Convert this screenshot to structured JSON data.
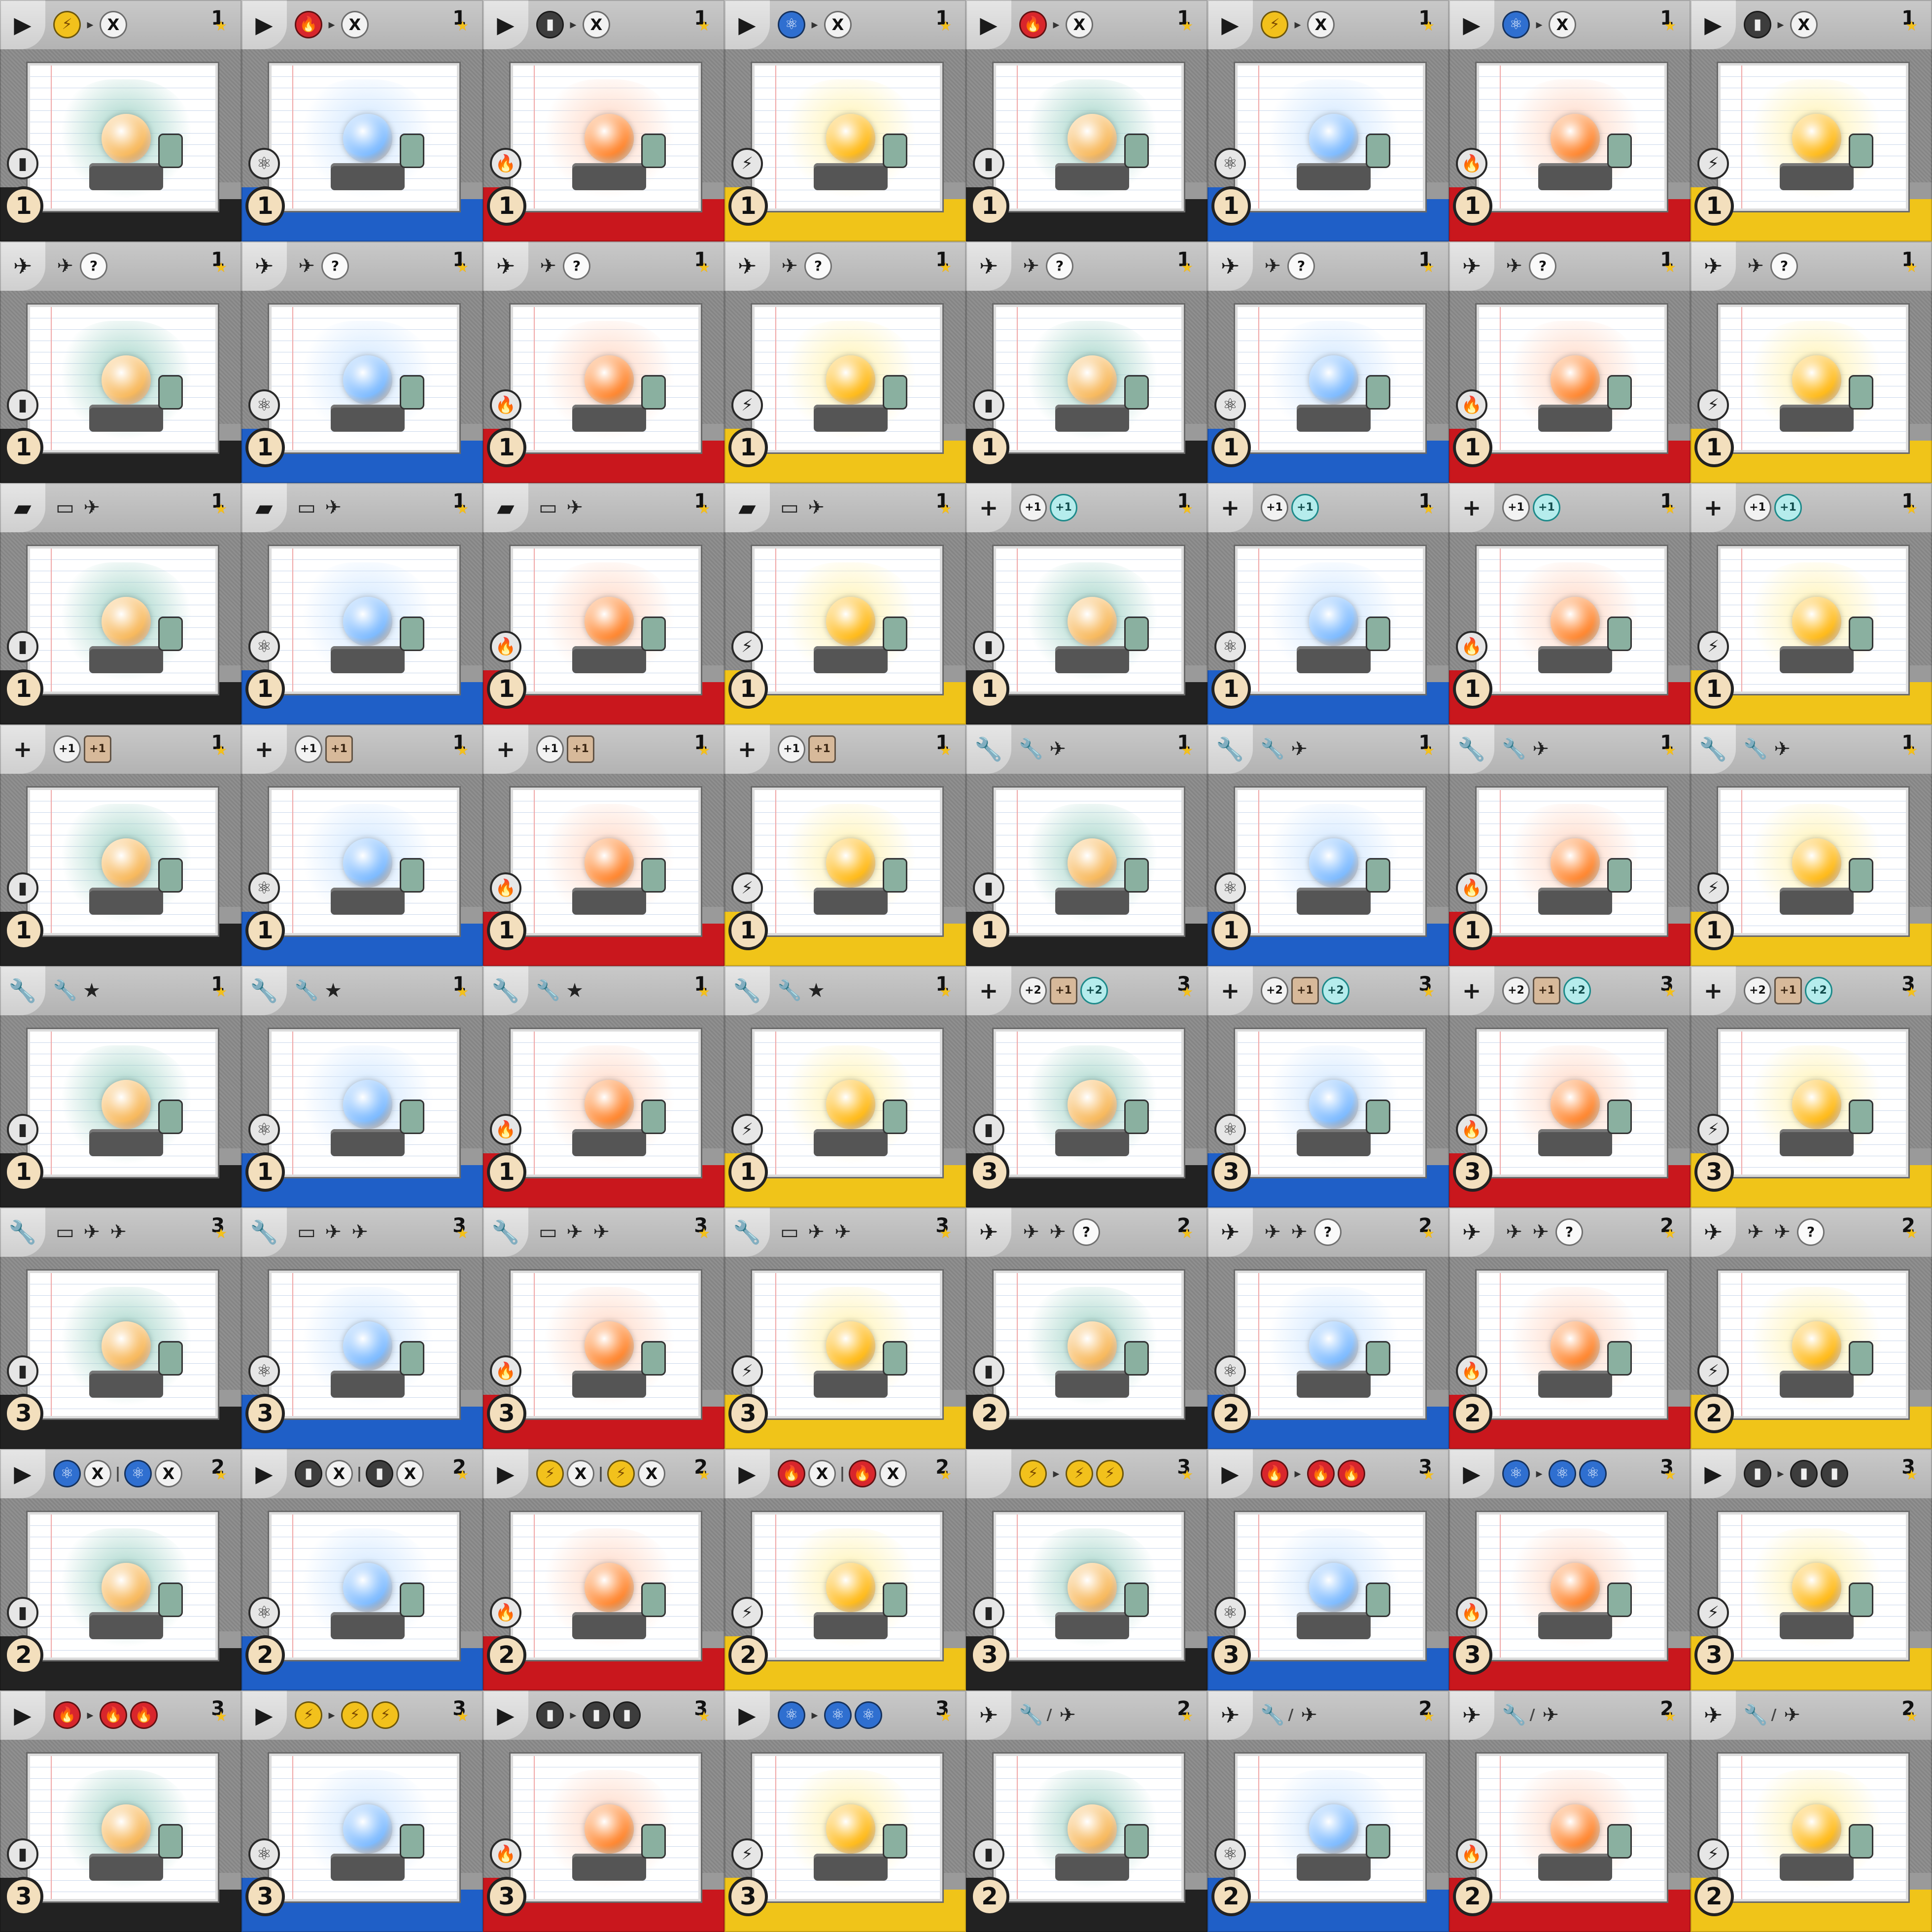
{
  "colors": {
    "black": "#222222",
    "blue": "#1f5fc7",
    "red": "#c9171d",
    "yellow": "#f0c419",
    "lightning": "#f2c11c",
    "fire": "#d8262c",
    "battery": "#3d3d3d",
    "atom": "#2f6fd0"
  },
  "resource_icons": {
    "lightning": "⚡",
    "fire": "🔥",
    "battery": "▮",
    "atom": "⚛"
  },
  "cards": [
    {
      "stripe": "black",
      "resource": "battery",
      "cost": "1",
      "points": "1",
      "action": "▶",
      "effects": [
        [
          "res",
          "lightning"
        ],
        [
          "arrow",
          "▸"
        ],
        [
          "x",
          "X"
        ]
      ]
    },
    {
      "stripe": "blue",
      "resource": "atom",
      "cost": "1",
      "points": "1",
      "action": "▶",
      "effects": [
        [
          "res",
          "fire"
        ],
        [
          "arrow",
          "▸"
        ],
        [
          "x",
          "X"
        ]
      ]
    },
    {
      "stripe": "red",
      "resource": "fire",
      "cost": "1",
      "points": "1",
      "action": "▶",
      "effects": [
        [
          "res",
          "battery"
        ],
        [
          "arrow",
          "▸"
        ],
        [
          "x",
          "X"
        ]
      ]
    },
    {
      "stripe": "yellow",
      "resource": "lightning",
      "cost": "1",
      "points": "1",
      "action": "▶",
      "effects": [
        [
          "res",
          "atom"
        ],
        [
          "arrow",
          "▸"
        ],
        [
          "x",
          "X"
        ]
      ]
    },
    {
      "stripe": "black",
      "resource": "battery",
      "cost": "1",
      "points": "1",
      "action": "▶",
      "effects": [
        [
          "res",
          "fire"
        ],
        [
          "arrow",
          "▸"
        ],
        [
          "x",
          "X"
        ]
      ]
    },
    {
      "stripe": "blue",
      "resource": "atom",
      "cost": "1",
      "points": "1",
      "action": "▶",
      "effects": [
        [
          "res",
          "lightning"
        ],
        [
          "arrow",
          "▸"
        ],
        [
          "x",
          "X"
        ]
      ]
    },
    {
      "stripe": "red",
      "resource": "fire",
      "cost": "1",
      "points": "1",
      "action": "▶",
      "effects": [
        [
          "res",
          "atom"
        ],
        [
          "arrow",
          "▸"
        ],
        [
          "x",
          "X"
        ]
      ]
    },
    {
      "stripe": "yellow",
      "resource": "lightning",
      "cost": "1",
      "points": "1",
      "action": "▶",
      "effects": [
        [
          "res",
          "battery"
        ],
        [
          "arrow",
          "▸"
        ],
        [
          "x",
          "X"
        ]
      ]
    },
    {
      "stripe": "black",
      "resource": "battery",
      "cost": "1",
      "points": "1",
      "action": "✈",
      "effects": [
        [
          "ico",
          "✈"
        ],
        [
          "q",
          "?"
        ]
      ]
    },
    {
      "stripe": "blue",
      "resource": "atom",
      "cost": "1",
      "points": "1",
      "action": "✈",
      "effects": [
        [
          "ico",
          "✈"
        ],
        [
          "q",
          "?"
        ]
      ]
    },
    {
      "stripe": "red",
      "resource": "fire",
      "cost": "1",
      "points": "1",
      "action": "✈",
      "effects": [
        [
          "ico",
          "✈"
        ],
        [
          "q",
          "?"
        ]
      ]
    },
    {
      "stripe": "yellow",
      "resource": "lightning",
      "cost": "1",
      "points": "1",
      "action": "✈",
      "effects": [
        [
          "ico",
          "✈"
        ],
        [
          "q",
          "?"
        ]
      ]
    },
    {
      "stripe": "black",
      "resource": "battery",
      "cost": "1",
      "points": "1",
      "action": "✈",
      "effects": [
        [
          "ico",
          "✈"
        ],
        [
          "q",
          "?"
        ]
      ]
    },
    {
      "stripe": "blue",
      "resource": "atom",
      "cost": "1",
      "points": "1",
      "action": "✈",
      "effects": [
        [
          "ico",
          "✈"
        ],
        [
          "q",
          "?"
        ]
      ]
    },
    {
      "stripe": "red",
      "resource": "fire",
      "cost": "1",
      "points": "1",
      "action": "✈",
      "effects": [
        [
          "ico",
          "✈"
        ],
        [
          "q",
          "?"
        ]
      ]
    },
    {
      "stripe": "yellow",
      "resource": "lightning",
      "cost": "1",
      "points": "1",
      "action": "✈",
      "effects": [
        [
          "ico",
          "✈"
        ],
        [
          "q",
          "?"
        ]
      ]
    },
    {
      "stripe": "black",
      "resource": "battery",
      "cost": "1",
      "points": "1",
      "action": "▰",
      "effects": [
        [
          "ico",
          "▭"
        ],
        [
          "ico",
          "✈"
        ]
      ]
    },
    {
      "stripe": "blue",
      "resource": "atom",
      "cost": "1",
      "points": "1",
      "action": "▰",
      "effects": [
        [
          "ico",
          "▭"
        ],
        [
          "ico",
          "✈"
        ]
      ]
    },
    {
      "stripe": "red",
      "resource": "fire",
      "cost": "1",
      "points": "1",
      "action": "▰",
      "effects": [
        [
          "ico",
          "▭"
        ],
        [
          "ico",
          "✈"
        ]
      ]
    },
    {
      "stripe": "yellow",
      "resource": "lightning",
      "cost": "1",
      "points": "1",
      "action": "▰",
      "effects": [
        [
          "ico",
          "▭"
        ],
        [
          "ico",
          "✈"
        ]
      ]
    },
    {
      "stripe": "black",
      "resource": "battery",
      "cost": "1",
      "points": "1",
      "action": "+",
      "effects": [
        [
          "plus",
          "+1"
        ],
        [
          "mag",
          "+1"
        ]
      ]
    },
    {
      "stripe": "blue",
      "resource": "atom",
      "cost": "1",
      "points": "1",
      "action": "+",
      "effects": [
        [
          "plus",
          "+1"
        ],
        [
          "mag",
          "+1"
        ]
      ]
    },
    {
      "stripe": "red",
      "resource": "fire",
      "cost": "1",
      "points": "1",
      "action": "+",
      "effects": [
        [
          "plus",
          "+1"
        ],
        [
          "mag",
          "+1"
        ]
      ]
    },
    {
      "stripe": "yellow",
      "resource": "lightning",
      "cost": "1",
      "points": "1",
      "action": "+",
      "effects": [
        [
          "plus",
          "+1"
        ],
        [
          "mag",
          "+1"
        ]
      ]
    },
    {
      "stripe": "black",
      "resource": "battery",
      "cost": "1",
      "points": "1",
      "action": "+",
      "effects": [
        [
          "plus",
          "+1"
        ],
        [
          "sq",
          "+1"
        ]
      ]
    },
    {
      "stripe": "blue",
      "resource": "atom",
      "cost": "1",
      "points": "1",
      "action": "+",
      "effects": [
        [
          "plus",
          "+1"
        ],
        [
          "sq",
          "+1"
        ]
      ]
    },
    {
      "stripe": "red",
      "resource": "fire",
      "cost": "1",
      "points": "1",
      "action": "+",
      "effects": [
        [
          "plus",
          "+1"
        ],
        [
          "sq",
          "+1"
        ]
      ]
    },
    {
      "stripe": "yellow",
      "resource": "lightning",
      "cost": "1",
      "points": "1",
      "action": "+",
      "effects": [
        [
          "plus",
          "+1"
        ],
        [
          "sq",
          "+1"
        ]
      ]
    },
    {
      "stripe": "black",
      "resource": "battery",
      "cost": "1",
      "points": "1",
      "action": "🔧",
      "effects": [
        [
          "ico",
          "🔧"
        ],
        [
          "ico",
          "✈"
        ]
      ]
    },
    {
      "stripe": "blue",
      "resource": "atom",
      "cost": "1",
      "points": "1",
      "action": "🔧",
      "effects": [
        [
          "ico",
          "🔧"
        ],
        [
          "ico",
          "✈"
        ]
      ]
    },
    {
      "stripe": "red",
      "resource": "fire",
      "cost": "1",
      "points": "1",
      "action": "🔧",
      "effects": [
        [
          "ico",
          "🔧"
        ],
        [
          "ico",
          "✈"
        ]
      ]
    },
    {
      "stripe": "yellow",
      "resource": "lightning",
      "cost": "1",
      "points": "1",
      "action": "🔧",
      "effects": [
        [
          "ico",
          "🔧"
        ],
        [
          "ico",
          "✈"
        ]
      ]
    },
    {
      "stripe": "black",
      "resource": "battery",
      "cost": "1",
      "points": "1",
      "action": "🔧",
      "effects": [
        [
          "ico",
          "🔧"
        ],
        [
          "ico",
          "★"
        ]
      ]
    },
    {
      "stripe": "blue",
      "resource": "atom",
      "cost": "1",
      "points": "1",
      "action": "🔧",
      "effects": [
        [
          "ico",
          "🔧"
        ],
        [
          "ico",
          "★"
        ]
      ]
    },
    {
      "stripe": "red",
      "resource": "fire",
      "cost": "1",
      "points": "1",
      "action": "🔧",
      "effects": [
        [
          "ico",
          "🔧"
        ],
        [
          "ico",
          "★"
        ]
      ]
    },
    {
      "stripe": "yellow",
      "resource": "lightning",
      "cost": "1",
      "points": "1",
      "action": "🔧",
      "effects": [
        [
          "ico",
          "🔧"
        ],
        [
          "ico",
          "★"
        ]
      ]
    },
    {
      "stripe": "black",
      "resource": "battery",
      "cost": "3",
      "points": "3",
      "action": "+",
      "effects": [
        [
          "plus",
          "+2"
        ],
        [
          "sq",
          "+1"
        ],
        [
          "mag",
          "+2"
        ]
      ]
    },
    {
      "stripe": "blue",
      "resource": "atom",
      "cost": "3",
      "points": "3",
      "action": "+",
      "effects": [
        [
          "plus",
          "+2"
        ],
        [
          "sq",
          "+1"
        ],
        [
          "mag",
          "+2"
        ]
      ]
    },
    {
      "stripe": "red",
      "resource": "fire",
      "cost": "3",
      "points": "3",
      "action": "+",
      "effects": [
        [
          "plus",
          "+2"
        ],
        [
          "sq",
          "+1"
        ],
        [
          "mag",
          "+2"
        ]
      ]
    },
    {
      "stripe": "yellow",
      "resource": "lightning",
      "cost": "3",
      "points": "3",
      "action": "+",
      "effects": [
        [
          "plus",
          "+2"
        ],
        [
          "sq",
          "+1"
        ],
        [
          "mag",
          "+2"
        ]
      ]
    },
    {
      "stripe": "black",
      "resource": "battery",
      "cost": "3",
      "points": "3",
      "action": "🔧",
      "effects": [
        [
          "ico",
          "▭"
        ],
        [
          "ico",
          "✈"
        ],
        [
          "ico",
          "✈"
        ]
      ]
    },
    {
      "stripe": "blue",
      "resource": "atom",
      "cost": "3",
      "points": "3",
      "action": "🔧",
      "effects": [
        [
          "ico",
          "▭"
        ],
        [
          "ico",
          "✈"
        ],
        [
          "ico",
          "✈"
        ]
      ]
    },
    {
      "stripe": "red",
      "resource": "fire",
      "cost": "3",
      "points": "3",
      "action": "🔧",
      "effects": [
        [
          "ico",
          "▭"
        ],
        [
          "ico",
          "✈"
        ],
        [
          "ico",
          "✈"
        ]
      ]
    },
    {
      "stripe": "yellow",
      "resource": "lightning",
      "cost": "3",
      "points": "3",
      "action": "🔧",
      "effects": [
        [
          "ico",
          "▭"
        ],
        [
          "ico",
          "✈"
        ],
        [
          "ico",
          "✈"
        ]
      ]
    },
    {
      "stripe": "black",
      "resource": "battery",
      "cost": "2",
      "points": "2",
      "action": "✈",
      "effects": [
        [
          "ico",
          "✈"
        ],
        [
          "ico",
          "✈"
        ],
        [
          "q",
          "?"
        ]
      ]
    },
    {
      "stripe": "blue",
      "resource": "atom",
      "cost": "2",
      "points": "2",
      "action": "✈",
      "effects": [
        [
          "ico",
          "✈"
        ],
        [
          "ico",
          "✈"
        ],
        [
          "q",
          "?"
        ]
      ]
    },
    {
      "stripe": "red",
      "resource": "fire",
      "cost": "2",
      "points": "2",
      "action": "✈",
      "effects": [
        [
          "ico",
          "✈"
        ],
        [
          "ico",
          "✈"
        ],
        [
          "q",
          "?"
        ]
      ]
    },
    {
      "stripe": "yellow",
      "resource": "lightning",
      "cost": "2",
      "points": "2",
      "action": "✈",
      "effects": [
        [
          "ico",
          "✈"
        ],
        [
          "ico",
          "✈"
        ],
        [
          "q",
          "?"
        ]
      ]
    },
    {
      "stripe": "black",
      "resource": "battery",
      "cost": "2",
      "points": "2",
      "action": "▶",
      "effects": [
        [
          "res",
          "atom"
        ],
        [
          "x",
          "X"
        ],
        [
          "sep",
          "|"
        ],
        [
          "res",
          "atom"
        ],
        [
          "x",
          "X"
        ]
      ]
    },
    {
      "stripe": "blue",
      "resource": "atom",
      "cost": "2",
      "points": "2",
      "action": "▶",
      "effects": [
        [
          "res",
          "battery"
        ],
        [
          "x",
          "X"
        ],
        [
          "sep",
          "|"
        ],
        [
          "res",
          "battery"
        ],
        [
          "x",
          "X"
        ]
      ]
    },
    {
      "stripe": "red",
      "resource": "fire",
      "cost": "2",
      "points": "2",
      "action": "▶",
      "effects": [
        [
          "res",
          "lightning"
        ],
        [
          "x",
          "X"
        ],
        [
          "sep",
          "|"
        ],
        [
          "res",
          "lightning"
        ],
        [
          "x",
          "X"
        ]
      ]
    },
    {
      "stripe": "yellow",
      "resource": "lightning",
      "cost": "2",
      "points": "2",
      "action": "▶",
      "effects": [
        [
          "res",
          "fire"
        ],
        [
          "x",
          "X"
        ],
        [
          "sep",
          "|"
        ],
        [
          "res",
          "fire"
        ],
        [
          "x",
          "X"
        ]
      ]
    },
    {
      "stripe": "black",
      "resource": "battery",
      "cost": "3",
      "points": "3",
      "action": "",
      "effects": [
        [
          "res",
          "lightning"
        ],
        [
          "arrow",
          "▸"
        ],
        [
          "res",
          "lightning"
        ],
        [
          "res",
          "lightning"
        ]
      ]
    },
    {
      "stripe": "blue",
      "resource": "atom",
      "cost": "3",
      "points": "3",
      "action": "▶",
      "effects": [
        [
          "res",
          "fire"
        ],
        [
          "arrow",
          "▸"
        ],
        [
          "res",
          "fire"
        ],
        [
          "res",
          "fire"
        ]
      ]
    },
    {
      "stripe": "red",
      "resource": "fire",
      "cost": "3",
      "points": "3",
      "action": "▶",
      "effects": [
        [
          "res",
          "atom"
        ],
        [
          "arrow",
          "▸"
        ],
        [
          "res",
          "atom"
        ],
        [
          "res",
          "atom"
        ]
      ]
    },
    {
      "stripe": "yellow",
      "resource": "lightning",
      "cost": "3",
      "points": "3",
      "action": "▶",
      "effects": [
        [
          "res",
          "battery"
        ],
        [
          "arrow",
          "▸"
        ],
        [
          "res",
          "battery"
        ],
        [
          "res",
          "battery"
        ]
      ]
    },
    {
      "stripe": "black",
      "resource": "battery",
      "cost": "3",
      "points": "3",
      "action": "▶",
      "effects": [
        [
          "res",
          "fire"
        ],
        [
          "arrow",
          "▸"
        ],
        [
          "res",
          "fire"
        ],
        [
          "res",
          "fire"
        ]
      ]
    },
    {
      "stripe": "blue",
      "resource": "atom",
      "cost": "3",
      "points": "3",
      "action": "▶",
      "effects": [
        [
          "res",
          "lightning"
        ],
        [
          "arrow",
          "▸"
        ],
        [
          "res",
          "lightning"
        ],
        [
          "res",
          "lightning"
        ]
      ]
    },
    {
      "stripe": "red",
      "resource": "fire",
      "cost": "3",
      "points": "3",
      "action": "▶",
      "effects": [
        [
          "res",
          "battery"
        ],
        [
          "arrow",
          "▸"
        ],
        [
          "res",
          "battery"
        ],
        [
          "res",
          "battery"
        ]
      ]
    },
    {
      "stripe": "yellow",
      "resource": "lightning",
      "cost": "3",
      "points": "3",
      "action": "▶",
      "effects": [
        [
          "res",
          "atom"
        ],
        [
          "arrow",
          "▸"
        ],
        [
          "res",
          "atom"
        ],
        [
          "res",
          "atom"
        ]
      ]
    },
    {
      "stripe": "black",
      "resource": "battery",
      "cost": "2",
      "points": "2",
      "action": "✈",
      "effects": [
        [
          "ico",
          "🔧"
        ],
        [
          "sep",
          "/"
        ],
        [
          "ico",
          "✈"
        ]
      ]
    },
    {
      "stripe": "blue",
      "resource": "atom",
      "cost": "2",
      "points": "2",
      "action": "✈",
      "effects": [
        [
          "ico",
          "🔧"
        ],
        [
          "sep",
          "/"
        ],
        [
          "ico",
          "✈"
        ]
      ]
    },
    {
      "stripe": "red",
      "resource": "fire",
      "cost": "2",
      "points": "2",
      "action": "✈",
      "effects": [
        [
          "ico",
          "🔧"
        ],
        [
          "sep",
          "/"
        ],
        [
          "ico",
          "✈"
        ]
      ]
    },
    {
      "stripe": "yellow",
      "resource": "lightning",
      "cost": "2",
      "points": "2",
      "action": "✈",
      "effects": [
        [
          "ico",
          "🔧"
        ],
        [
          "sep",
          "/"
        ],
        [
          "ico",
          "✈"
        ]
      ]
    }
  ]
}
